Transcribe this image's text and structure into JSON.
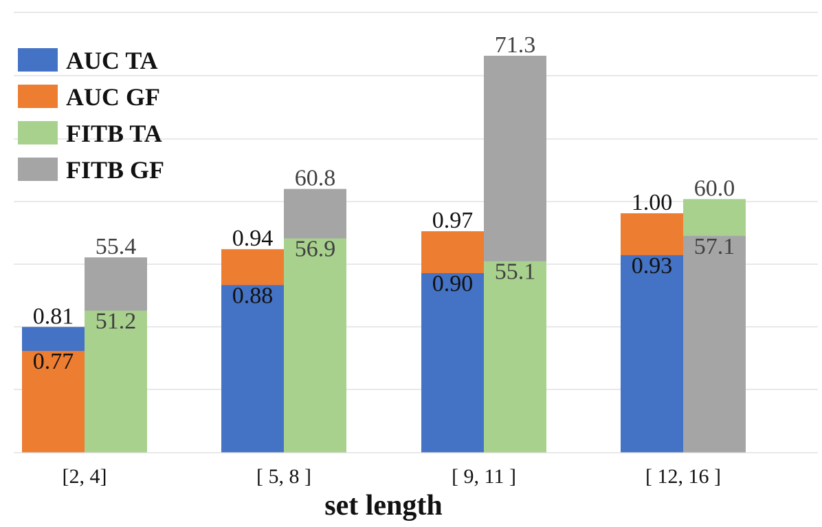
{
  "chart_data": {
    "type": "bar",
    "title": "",
    "xlabel": "set length",
    "ylabel": "",
    "categories": [
      "[2, 4]",
      "[ 5, 8 ]",
      "[ 9, 11 ]",
      "[ 12, 16 ]"
    ],
    "groups": [
      {
        "name": "AUC",
        "series": [
          {
            "name": "AUC TA",
            "values": [
              0.81,
              0.88,
              0.9,
              0.93
            ],
            "labels": [
              "0.81",
              "0.88",
              "0.90",
              "0.93"
            ]
          },
          {
            "name": "AUC GF",
            "values": [
              0.77,
              0.94,
              0.97,
              1.0
            ],
            "labels": [
              "0.77",
              "0.94",
              "0.97",
              "1.00"
            ]
          }
        ]
      },
      {
        "name": "FITB",
        "series": [
          {
            "name": "FITB TA",
            "values": [
              51.2,
              56.9,
              55.1,
              60.0
            ],
            "labels": [
              "51.2",
              "56.9",
              "55.1",
              "60.0"
            ]
          },
          {
            "name": "FITB GF",
            "values": [
              55.4,
              60.8,
              71.3,
              57.1
            ],
            "labels": [
              "55.4",
              "60.8",
              "71.3",
              "57.1"
            ]
          }
        ]
      }
    ],
    "legend": [
      {
        "name": "AUC TA",
        "color": "#4472c4"
      },
      {
        "name": "AUC GF",
        "color": "#ed7d31"
      },
      {
        "name": "FITB TA",
        "color": "#a9d18e"
      },
      {
        "name": "FITB GF",
        "color": "#a5a5a5"
      }
    ],
    "legend_position": "top-left",
    "grid": true
  }
}
